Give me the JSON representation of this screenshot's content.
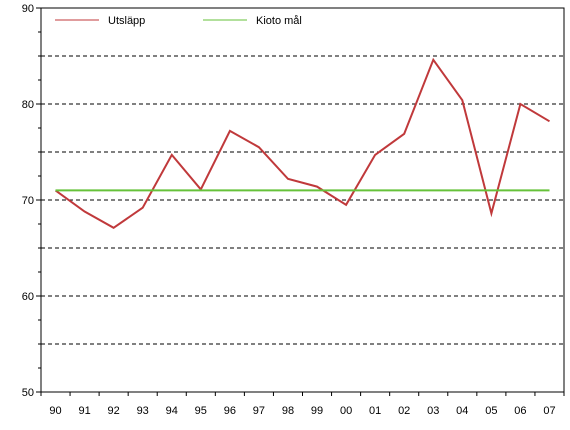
{
  "chart_data": {
    "type": "line",
    "title": "",
    "xlabel": "",
    "ylabel": "",
    "categories": [
      "90",
      "91",
      "92",
      "93",
      "94",
      "95",
      "96",
      "97",
      "98",
      "99",
      "00",
      "01",
      "02",
      "03",
      "04",
      "05",
      "06",
      "07"
    ],
    "ylim": [
      50,
      90
    ],
    "yticks": [
      50,
      60,
      70,
      80,
      90
    ],
    "grid": "dashed horizontal every 5",
    "legend_position": "top-left",
    "series": [
      {
        "name": "Utsläpp",
        "color": "#c0393b",
        "values": [
          71.0,
          68.8,
          67.1,
          69.2,
          74.7,
          71.1,
          77.2,
          75.5,
          72.2,
          71.4,
          69.5,
          74.7,
          76.9,
          84.6,
          80.4,
          68.6,
          80.0,
          78.2
        ]
      },
      {
        "name": "Kioto mål",
        "color": "#66c23a",
        "values": [
          71.0,
          71.0,
          71.0,
          71.0,
          71.0,
          71.0,
          71.0,
          71.0,
          71.0,
          71.0,
          71.0,
          71.0,
          71.0,
          71.0,
          71.0,
          71.0,
          71.0,
          71.0
        ]
      }
    ]
  }
}
